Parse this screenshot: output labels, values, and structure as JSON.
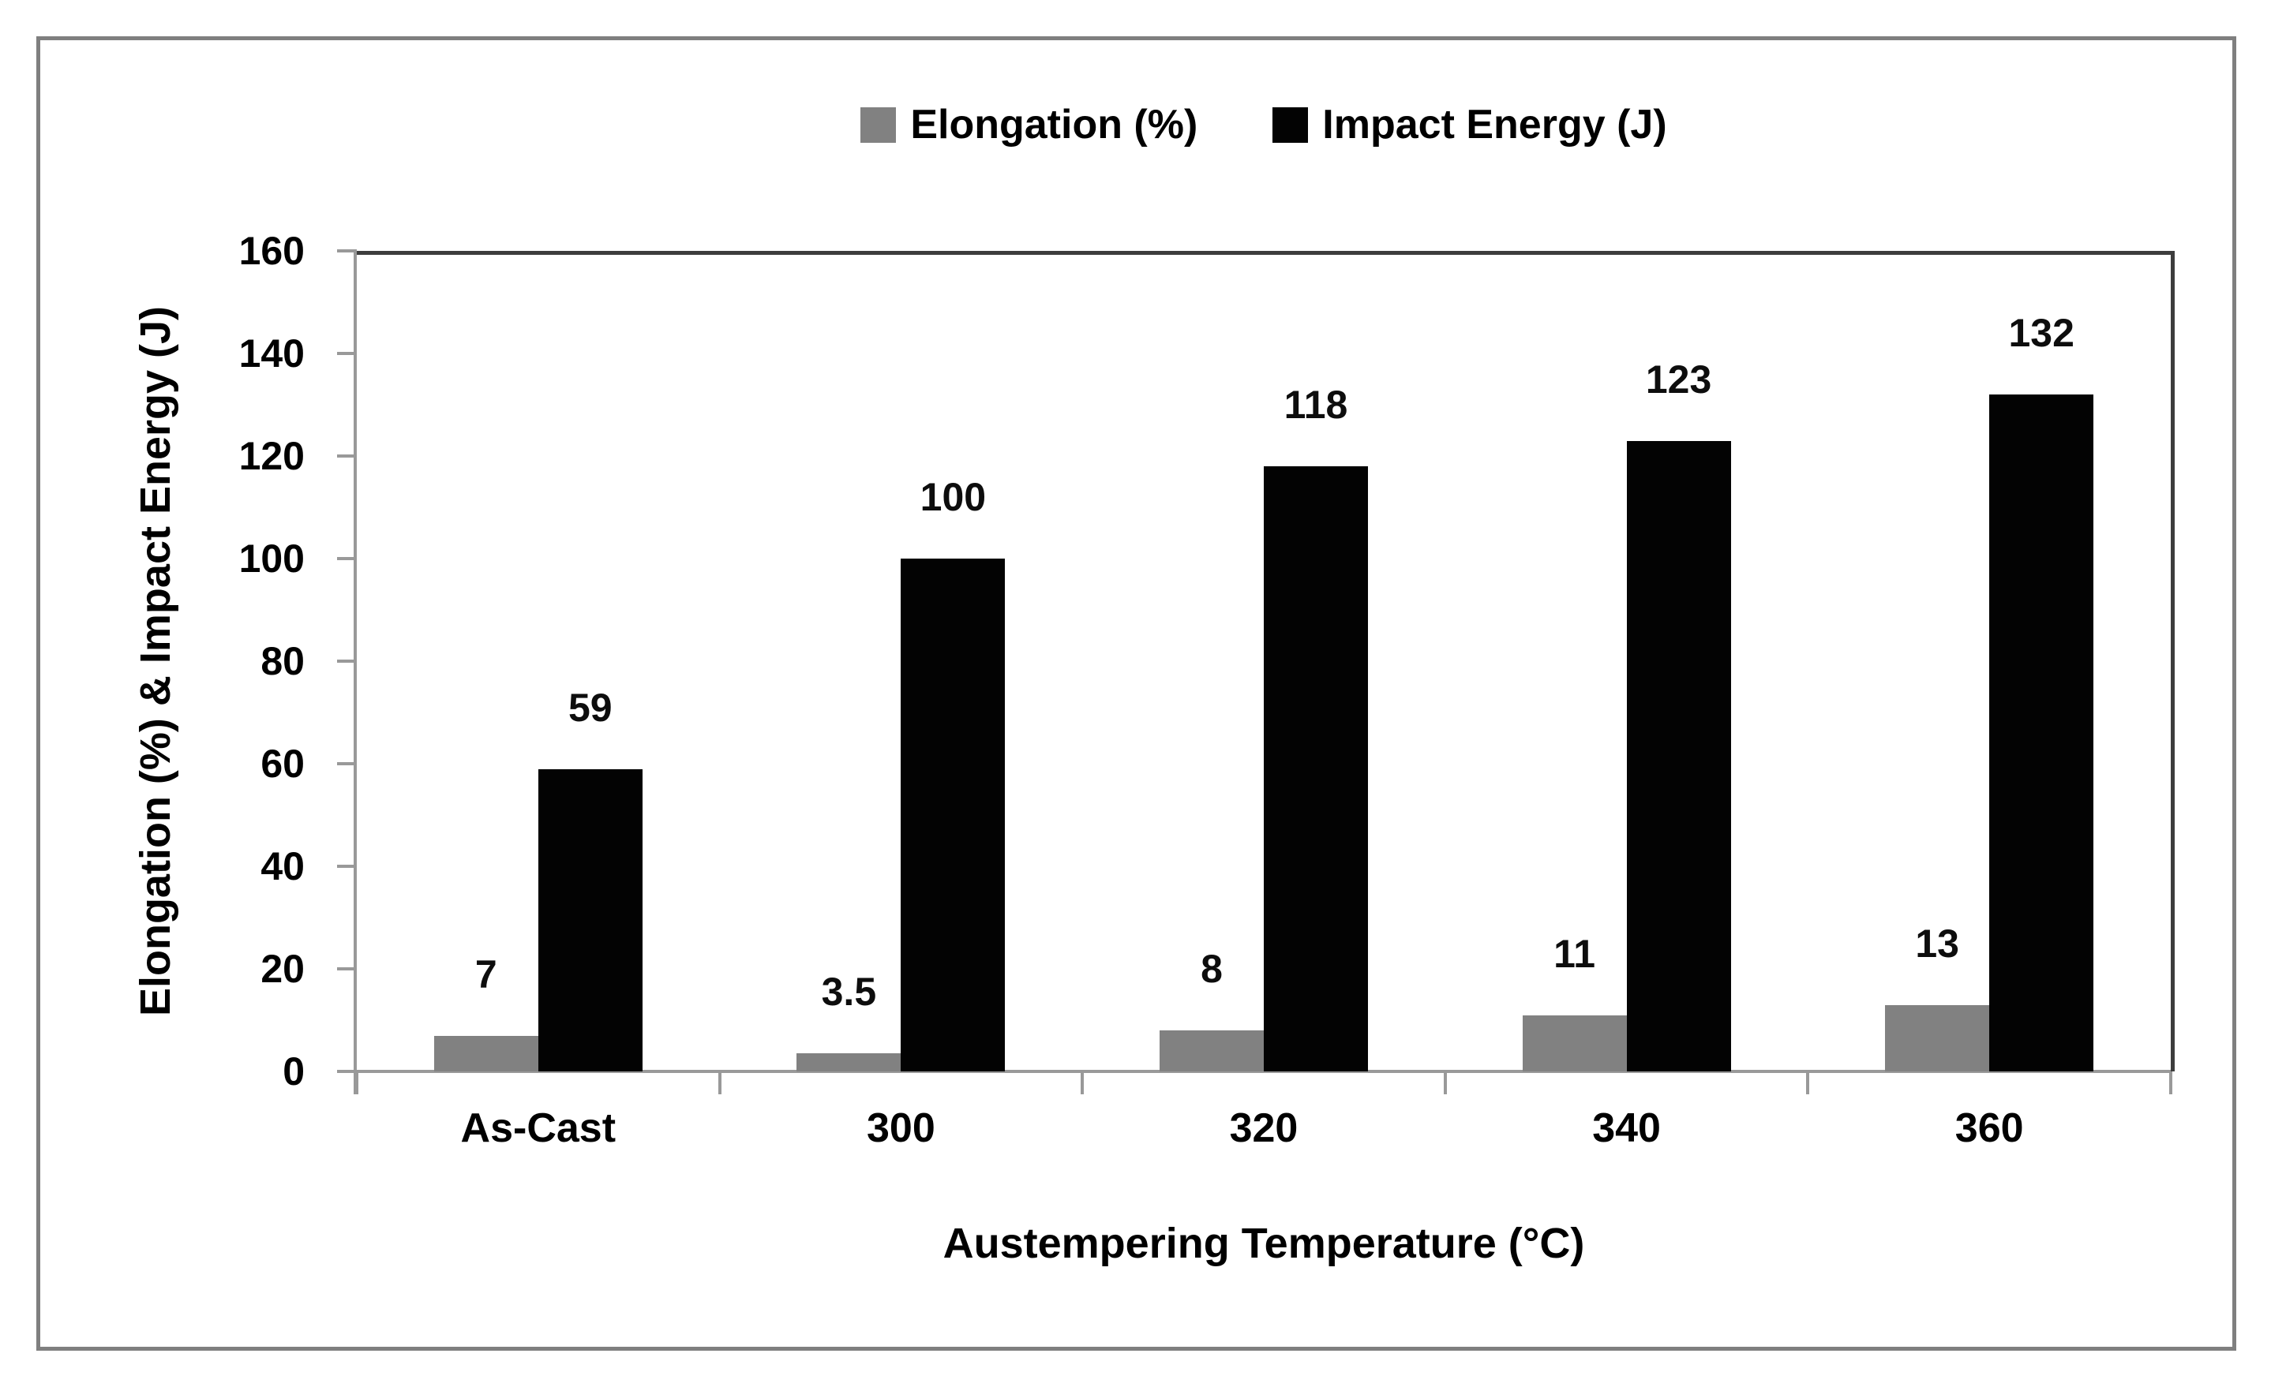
{
  "figure": {
    "background": "#ffffff",
    "border_color": "#7f7f7f"
  },
  "chart_data": {
    "type": "bar",
    "title": "",
    "categories": [
      "As-Cast",
      "300",
      "320",
      "340",
      "360"
    ],
    "series": [
      {
        "name": "Elongation (%)",
        "color": "#818181",
        "values": [
          7,
          3.5,
          8,
          11,
          13
        ]
      },
      {
        "name": "Impact Energy (J)",
        "color": "#030303",
        "values": [
          59,
          100,
          118,
          123,
          132
        ]
      }
    ],
    "data_labels": [
      "7",
      "3.5",
      "8",
      "11",
      "13",
      "59",
      "100",
      "118",
      "123",
      "132"
    ],
    "xlabel": "Austempering Temperature (°C)",
    "ylabel": "Elongation (%) & Impact Energy (J)",
    "ylim": [
      0,
      160
    ],
    "yticks": [
      0,
      20,
      40,
      60,
      80,
      100,
      120,
      140,
      160
    ],
    "legend_position": "top-center",
    "grid": false,
    "axis_color": "#999999",
    "plot_border_color": "#3d3d3d"
  }
}
